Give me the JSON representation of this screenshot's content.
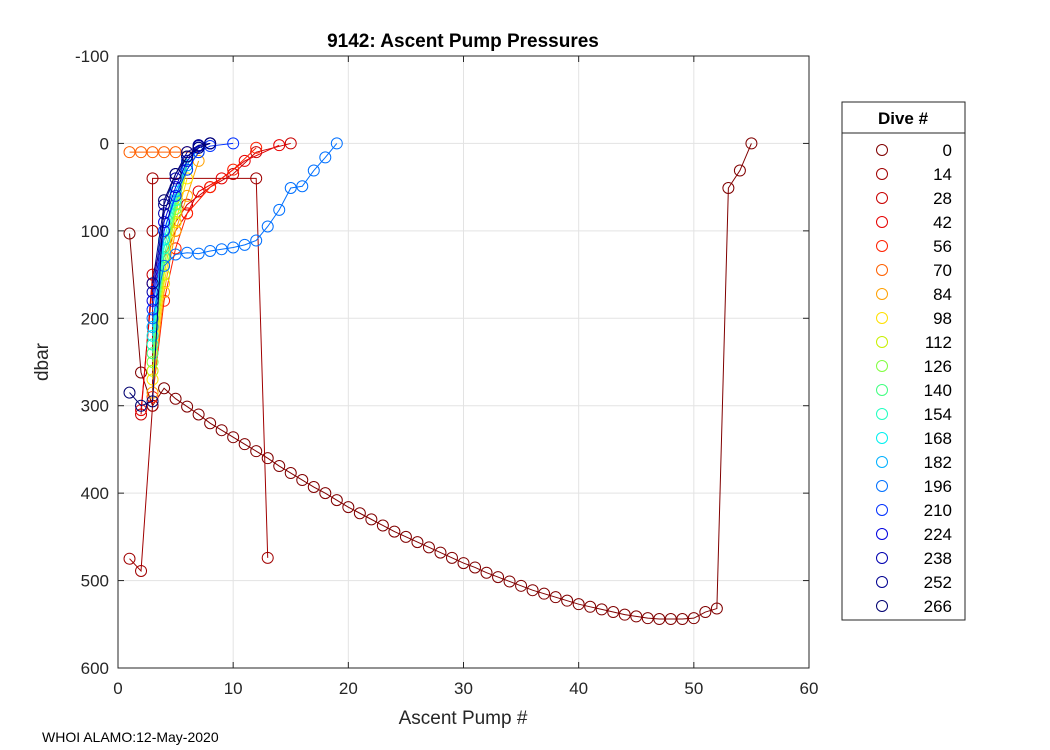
{
  "chart_data": {
    "type": "line",
    "title": "9142: Ascent Pump Pressures",
    "xlabel": "Ascent Pump #",
    "ylabel": "dbar",
    "xlim": [
      0,
      60
    ],
    "ylim": [
      -100,
      600
    ],
    "y_reversed": true,
    "grid": true,
    "x_ticks": [
      0,
      10,
      20,
      30,
      40,
      50,
      60
    ],
    "y_ticks": [
      -100,
      0,
      100,
      200,
      300,
      400,
      500,
      600
    ],
    "legend": {
      "title": "Dive #",
      "position": "right",
      "entries": [
        {
          "label": "0",
          "color": "#800000"
        },
        {
          "label": "14",
          "color": "#a00000"
        },
        {
          "label": "28",
          "color": "#c80000"
        },
        {
          "label": "42",
          "color": "#e60000"
        },
        {
          "label": "56",
          "color": "#ff2000"
        },
        {
          "label": "70",
          "color": "#ff6000"
        },
        {
          "label": "84",
          "color": "#ffa000"
        },
        {
          "label": "98",
          "color": "#ffe000"
        },
        {
          "label": "112",
          "color": "#c8f000"
        },
        {
          "label": "126",
          "color": "#80ff40"
        },
        {
          "label": "140",
          "color": "#40ff80"
        },
        {
          "label": "154",
          "color": "#20ffc0"
        },
        {
          "label": "168",
          "color": "#00f0f0"
        },
        {
          "label": "182",
          "color": "#00b0ff"
        },
        {
          "label": "196",
          "color": "#0070ff"
        },
        {
          "label": "210",
          "color": "#0030ff"
        },
        {
          "label": "224",
          "color": "#0000e0"
        },
        {
          "label": "238",
          "color": "#0000b0"
        },
        {
          "label": "252",
          "color": "#000090"
        },
        {
          "label": "266",
          "color": "#000070"
        }
      ]
    },
    "series": [
      {
        "name": "0",
        "color": "#800000",
        "x": [
          1,
          2,
          3,
          4,
          5,
          6,
          7,
          8,
          9,
          10,
          11,
          12,
          13,
          14,
          15,
          16,
          17,
          18,
          19,
          20,
          21,
          22,
          23,
          24,
          25,
          26,
          27,
          28,
          29,
          30,
          31,
          32,
          33,
          34,
          35,
          36,
          37,
          38,
          39,
          40,
          41,
          42,
          43,
          44,
          45,
          46,
          47,
          48,
          49,
          50,
          51,
          52,
          53,
          54,
          55
        ],
        "y": [
          103,
          262,
          300,
          280,
          292,
          301,
          310,
          320,
          328,
          336,
          344,
          352,
          360,
          369,
          377,
          385,
          393,
          400,
          408,
          416,
          423,
          430,
          437,
          444,
          450,
          456,
          462,
          468,
          474,
          480,
          485,
          491,
          496,
          501,
          506,
          511,
          515,
          519,
          523,
          527,
          530,
          533,
          536,
          539,
          541,
          543,
          544,
          544,
          544,
          543,
          536,
          532,
          51,
          31,
          0
        ]
      },
      {
        "name": "14",
        "color": "#a00000",
        "x": [
          1,
          2,
          3,
          3,
          3,
          12,
          13
        ],
        "y": [
          475,
          489,
          300,
          100,
          40,
          40,
          474
        ]
      },
      {
        "name": "28",
        "color": "#c80000",
        "x": [
          2,
          3,
          4,
          5,
          6,
          8,
          10,
          12,
          15
        ],
        "y": [
          310,
          150,
          110,
          90,
          70,
          50,
          35,
          10,
          0
        ]
      },
      {
        "name": "42",
        "color": "#e60000",
        "x": [
          2,
          3,
          4,
          5,
          6,
          7,
          9,
          11,
          14
        ],
        "y": [
          305,
          160,
          130,
          100,
          80,
          55,
          40,
          20,
          2
        ]
      },
      {
        "name": "56",
        "color": "#ff2000",
        "x": [
          3,
          4,
          5,
          6,
          8,
          10,
          12
        ],
        "y": [
          290,
          180,
          120,
          80,
          50,
          30,
          5
        ]
      },
      {
        "name": "70",
        "color": "#ff6000",
        "x": [
          1,
          2,
          3,
          4,
          5,
          6,
          7
        ],
        "y": [
          10,
          10,
          10,
          10,
          10,
          10,
          10
        ]
      },
      {
        "name": "84",
        "color": "#ffa000",
        "x": [
          3,
          4,
          5,
          6,
          7
        ],
        "y": [
          285,
          170,
          100,
          60,
          20
        ]
      },
      {
        "name": "98",
        "color": "#ffe000",
        "x": [
          3,
          4,
          5,
          6
        ],
        "y": [
          270,
          160,
          90,
          40
        ]
      },
      {
        "name": "112",
        "color": "#c8f000",
        "x": [
          3,
          4,
          5,
          6
        ],
        "y": [
          260,
          150,
          80,
          30
        ]
      },
      {
        "name": "126",
        "color": "#80ff40",
        "x": [
          3,
          4,
          5,
          6
        ],
        "y": [
          250,
          140,
          75,
          25
        ]
      },
      {
        "name": "140",
        "color": "#40ff80",
        "x": [
          3,
          4,
          5,
          6
        ],
        "y": [
          240,
          130,
          70,
          20
        ]
      },
      {
        "name": "154",
        "color": "#20ffc0",
        "x": [
          3,
          4,
          5,
          6
        ],
        "y": [
          230,
          120,
          65,
          15
        ]
      },
      {
        "name": "168",
        "color": "#00f0f0",
        "x": [
          3,
          4,
          5,
          6,
          7
        ],
        "y": [
          220,
          110,
          60,
          30,
          10
        ]
      },
      {
        "name": "182",
        "color": "#00b0ff",
        "x": [
          3,
          4,
          5,
          6,
          7
        ],
        "y": [
          210,
          100,
          55,
          25,
          5
        ]
      },
      {
        "name": "196",
        "color": "#0070ff",
        "x": [
          3,
          4,
          5,
          6,
          7,
          8,
          9,
          10,
          11,
          12,
          13,
          14,
          15,
          16,
          17,
          18,
          19
        ],
        "y": [
          200,
          140,
          127,
          125,
          126,
          123,
          121,
          119,
          116,
          111,
          95,
          76,
          51,
          49,
          31,
          16,
          0
        ]
      },
      {
        "name": "210",
        "color": "#0030ff",
        "x": [
          3,
          4,
          5,
          6,
          7,
          8,
          10
        ],
        "y": [
          190,
          100,
          60,
          30,
          10,
          3,
          0
        ]
      },
      {
        "name": "224",
        "color": "#0000e0",
        "x": [
          3,
          4,
          5,
          6,
          7,
          8
        ],
        "y": [
          180,
          90,
          50,
          20,
          5,
          0
        ]
      },
      {
        "name": "238",
        "color": "#0000b0",
        "x": [
          3,
          4,
          5,
          6,
          7,
          8
        ],
        "y": [
          170,
          80,
          40,
          15,
          3,
          0
        ]
      },
      {
        "name": "252",
        "color": "#000090",
        "x": [
          3,
          4,
          5,
          6,
          7,
          8
        ],
        "y": [
          160,
          70,
          35,
          10,
          2,
          0
        ]
      },
      {
        "name": "266",
        "color": "#000070",
        "x": [
          1,
          2,
          3,
          4,
          5,
          6,
          7,
          8
        ],
        "y": [
          285,
          300,
          295,
          65,
          35,
          15,
          5,
          0
        ]
      }
    ]
  },
  "footer": "WHOI ALAMO:12-May-2020"
}
